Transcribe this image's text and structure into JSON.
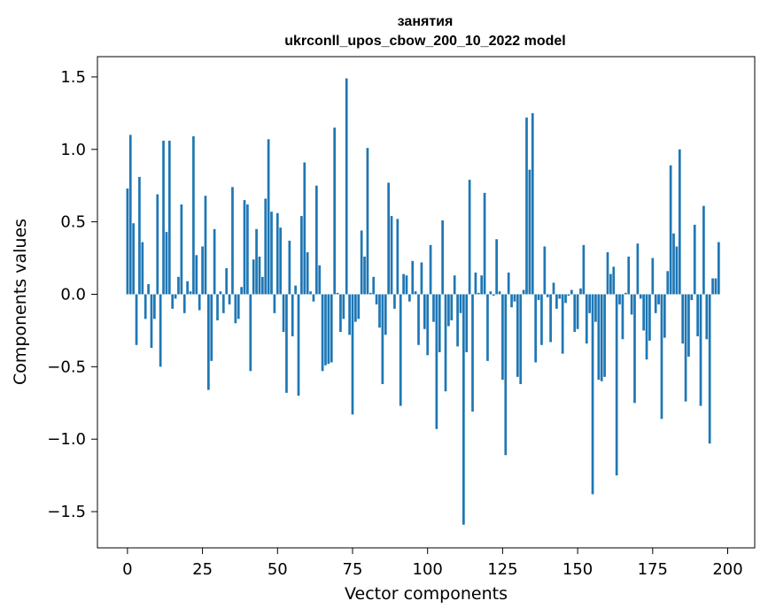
{
  "chart_data": {
    "type": "bar",
    "title_line1": "занятия",
    "title_line2": "ukrconll_upos_cbow_200_10_2022 model",
    "xlabel": "Vector components",
    "ylabel": "Components values",
    "xlim": [
      -10,
      209
    ],
    "ylim": [
      -1.75,
      1.64
    ],
    "xticks": [
      0,
      25,
      50,
      75,
      100,
      125,
      150,
      175,
      200
    ],
    "yticks": [
      -1.5,
      -1.0,
      -0.5,
      0.0,
      0.5,
      1.0,
      1.5
    ],
    "ytick_labels": [
      "−1.5",
      "−1.0",
      "−0.5",
      "0.0",
      "0.5",
      "1.0",
      "1.5"
    ],
    "bar_color": "#1f77b4",
    "values": [
      0.73,
      1.1,
      0.49,
      -0.35,
      0.81,
      0.36,
      -0.17,
      0.07,
      -0.37,
      -0.17,
      0.69,
      -0.5,
      1.06,
      0.43,
      1.06,
      -0.1,
      -0.03,
      0.12,
      0.62,
      -0.13,
      0.09,
      0.02,
      1.09,
      0.27,
      -0.11,
      0.33,
      0.68,
      -0.66,
      -0.46,
      0.45,
      -0.18,
      0.02,
      -0.13,
      0.18,
      -0.07,
      0.74,
      -0.2,
      -0.17,
      0.05,
      0.65,
      0.62,
      -0.53,
      0.24,
      0.45,
      0.26,
      0.12,
      0.66,
      1.07,
      0.57,
      -0.13,
      0.56,
      0.46,
      -0.26,
      -0.68,
      0.37,
      -0.29,
      0.06,
      -0.7,
      0.54,
      0.91,
      0.29,
      0.02,
      -0.05,
      0.75,
      0.2,
      -0.53,
      -0.49,
      -0.48,
      -0.47,
      1.15,
      0.01,
      -0.26,
      -0.17,
      1.49,
      -0.28,
      -0.83,
      -0.19,
      -0.17,
      0.44,
      0.26,
      1.01,
      0.01,
      0.12,
      -0.07,
      -0.23,
      -0.62,
      -0.28,
      0.77,
      0.54,
      -0.1,
      0.52,
      -0.77,
      0.14,
      0.13,
      -0.05,
      0.23,
      0.02,
      -0.35,
      0.22,
      -0.24,
      -0.42,
      0.34,
      -0.19,
      -0.93,
      -0.4,
      0.51,
      -0.67,
      -0.22,
      -0.18,
      0.13,
      -0.36,
      -0.13,
      -1.59,
      -0.4,
      0.79,
      -0.81,
      0.15,
      0.01,
      0.13,
      0.7,
      -0.46,
      0.02,
      -0.01,
      0.38,
      0.02,
      -0.59,
      -1.11,
      0.15,
      -0.09,
      -0.05,
      -0.57,
      -0.62,
      0.03,
      1.22,
      0.86,
      1.25,
      -0.47,
      -0.04,
      -0.35,
      0.33,
      -0.02,
      -0.33,
      0.08,
      -0.1,
      -0.03,
      -0.41,
      -0.06,
      -0.01,
      0.03,
      -0.26,
      -0.24,
      0.04,
      0.34,
      -0.34,
      -0.13,
      -1.38,
      -0.19,
      -0.59,
      -0.6,
      -0.57,
      0.29,
      0.14,
      0.19,
      -1.25,
      -0.07,
      -0.31,
      0.01,
      0.26,
      -0.14,
      -0.75,
      0.35,
      -0.03,
      -0.25,
      -0.45,
      -0.32,
      0.25,
      -0.13,
      -0.07,
      -0.86,
      -0.3,
      0.16,
      0.89,
      0.42,
      0.33,
      1.0,
      -0.34,
      -0.74,
      -0.43,
      -0.04,
      0.48,
      -0.29,
      -0.77,
      0.61,
      -0.31,
      -1.03,
      0.11,
      0.11,
      0.36
    ]
  }
}
